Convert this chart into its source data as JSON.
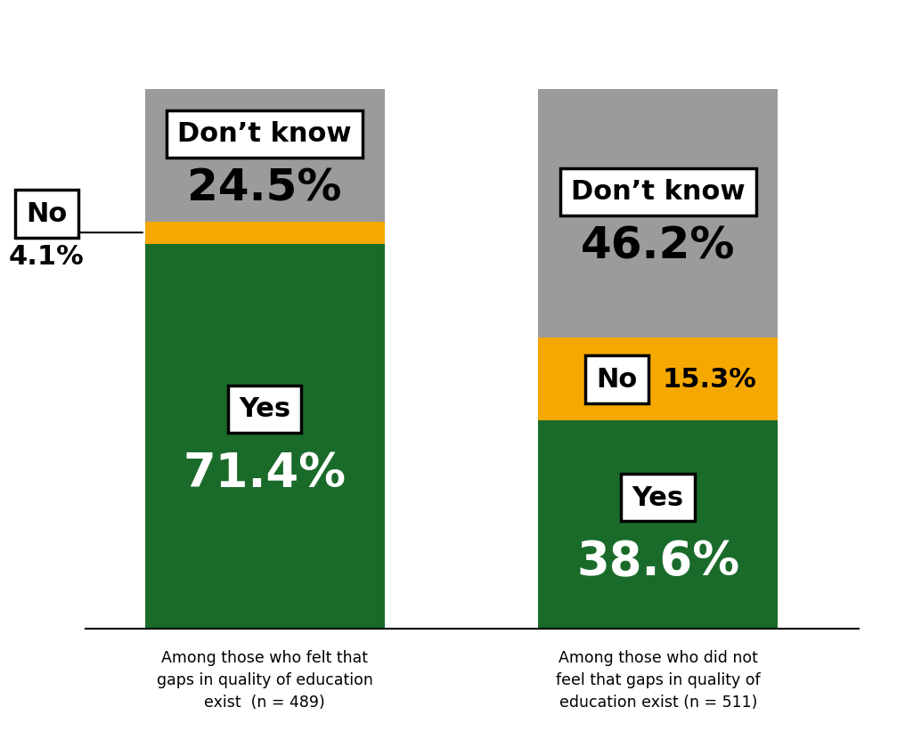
{
  "bars": [
    {
      "label": "Among those who felt that\ngaps in quality of education\nexist  (n = 489)",
      "yes": 71.4,
      "no": 4.1,
      "dont_know": 24.5
    },
    {
      "label": "Among those who did not\nfeel that gaps in quality of\neducation exist (n = 511)",
      "yes": 38.6,
      "no": 15.3,
      "dont_know": 46.2
    }
  ],
  "colors": {
    "yes": "#1a6b2a",
    "no": "#f5a800",
    "dont_know": "#9b9b9b"
  },
  "bar_width": 0.28,
  "bar_positions": [
    0.27,
    0.73
  ],
  "background_color": "#ffffff",
  "label_fontsize": 12.5,
  "pct_fontsize": 38,
  "category_fontsize": 22,
  "pct_small_fontsize": 22,
  "dk_pct_fontsize": 36,
  "ylim_max": 115,
  "ylim_min": -22
}
